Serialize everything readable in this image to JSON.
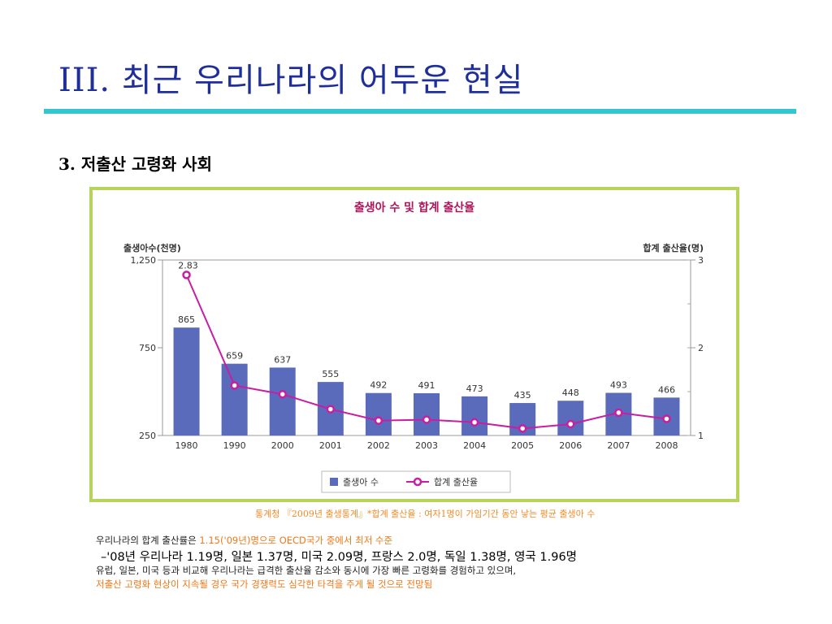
{
  "slide": {
    "title": "III. 최근 우리나라의 어두운 현실",
    "section": "3. 저출산 고령화 사회"
  },
  "colors": {
    "title": "#1f2f9a",
    "rule": "#33c7cf",
    "frame": "#b6d45a",
    "bar": "#5a6bbb",
    "line": "#c81ea3",
    "highlight": "#f07818"
  },
  "chart_data": {
    "type": "bar",
    "title": "출생아 수 및 합계 출산율",
    "ylabel_left": "출생아수(천명)",
    "ylabel_right": "합계 출산율(명)",
    "categories": [
      "1980",
      "1990",
      "2000",
      "2001",
      "2002",
      "2003",
      "2004",
      "2005",
      "2006",
      "2007",
      "2008"
    ],
    "left_ticks": [
      "1,250",
      "750",
      "250"
    ],
    "left_ylim": [
      250,
      1250
    ],
    "right_ticks": [
      "3",
      "2",
      "1"
    ],
    "right_ylim": [
      1,
      3
    ],
    "series": [
      {
        "name": "출생아 수",
        "type": "bar",
        "axis": "left",
        "values": [
          865,
          659,
          637,
          555,
          492,
          491,
          473,
          435,
          448,
          493,
          466
        ]
      },
      {
        "name": "합계 출산율",
        "type": "line",
        "axis": "right",
        "values": [
          2.83,
          1.57,
          1.47,
          1.3,
          1.17,
          1.18,
          1.15,
          1.08,
          1.13,
          1.26,
          1.19
        ]
      }
    ],
    "annotation": "2.83",
    "legend": [
      "출생아 수",
      "합계 출산율"
    ],
    "legend_position": "bottom"
  },
  "notes": {
    "source": "통계청 『2009년 출생통계』*합계 출산율 : 여자1명이 가임기간 동안 낳는 평균 출생아 수",
    "line1_prefix": "우리나라의 합계 출산률은 ",
    "line1_highlight": "1.15('09년)명으로 OECD국가 중에서 최저 수준",
    "line2": "–'08년 우리나라 1.19명, 일본 1.37명, 미국 2.09명, 프랑스 2.0명, 독일 1.38명, 영국 1.96명",
    "line3": "유럽, 일본, 미국 등과 비교해 우리나라는 급격한 출산율 감소와 동시에 가장 빠른 고령화를  경험하고 있으며,",
    "line4": "저출산 고령화 현상이 지속될 경우 국가 경쟁력도 심각한 타격을 주게 될 것으로 전망됨"
  }
}
